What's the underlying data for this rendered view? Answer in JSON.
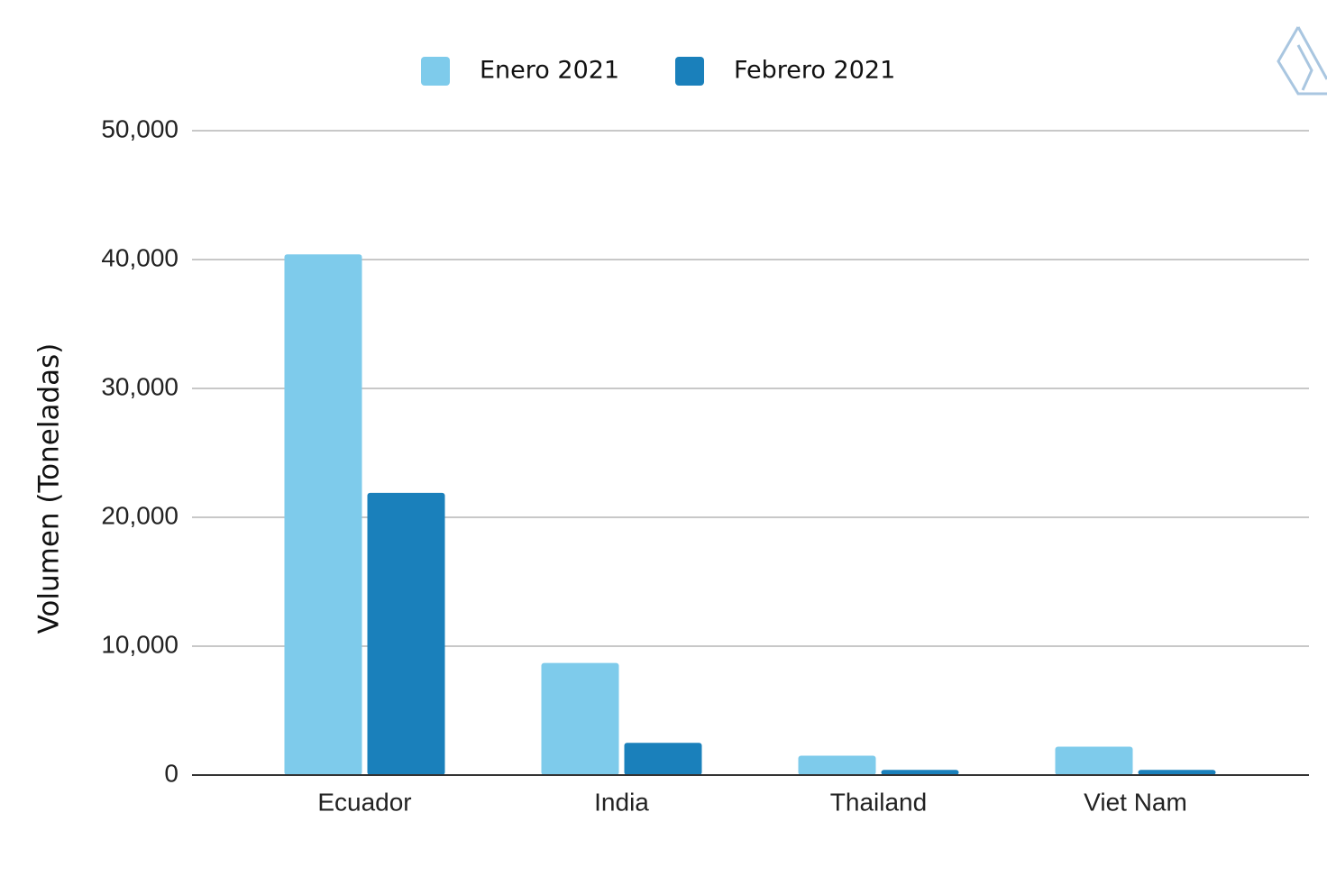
{
  "chart_data": {
    "type": "bar",
    "y_label": "Volumen (Toneladas)",
    "categories": [
      "Ecuador",
      "India",
      "Thailand",
      "Viet Nam"
    ],
    "series": [
      {
        "name": "Enero 2021",
        "color": "#7ecbeb",
        "values": [
          40400,
          8700,
          1500,
          2200
        ]
      },
      {
        "name": "Febrero 2021",
        "color": "#1a80bb",
        "values": [
          21900,
          2500,
          400,
          400
        ]
      }
    ],
    "ylim": [
      0,
      50000
    ],
    "yticks": [
      0,
      {
        "value": 10000,
        "label": "10,000"
      },
      {
        "value": 20000,
        "label": "20,000"
      },
      {
        "value": 30000,
        "label": "30,000"
      },
      {
        "value": 40000,
        "label": "40,000"
      },
      {
        "value": 50000,
        "label": "50,000"
      }
    ],
    "grid": true
  }
}
